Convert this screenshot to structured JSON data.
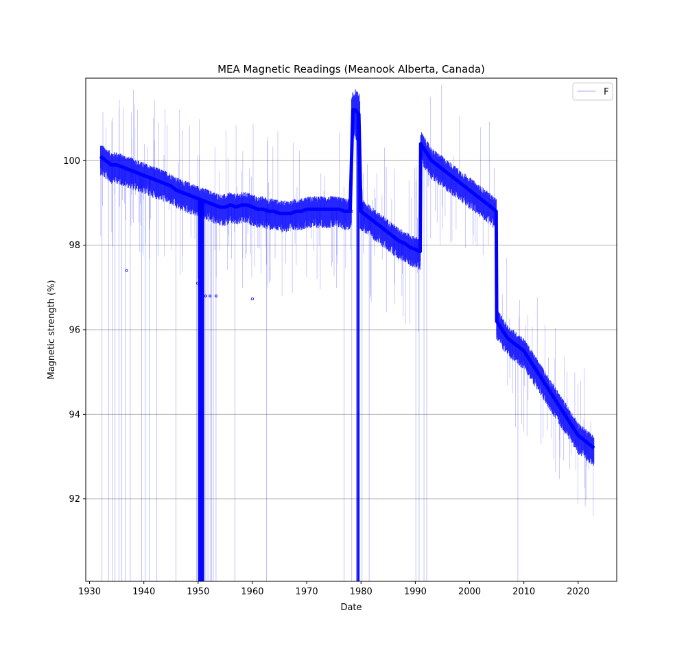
{
  "chart_data": {
    "type": "line",
    "title": "MEA Magnetic Readings (Meanook Alberta, Canada)",
    "xlabel": "Date",
    "ylabel": "Magnetic strength (%)",
    "xlim": [
      1929.3,
      2027.1
    ],
    "ylim": [
      90.05,
      101.95
    ],
    "xticks": [
      1930,
      1940,
      1950,
      1960,
      1970,
      1980,
      1990,
      2000,
      2010,
      2020
    ],
    "yticks": [
      92,
      94,
      96,
      98,
      100
    ],
    "grid": "horizontal",
    "legend_position": "top-right",
    "series": [
      {
        "name": "F",
        "color": "#0000ff",
        "x": [
          1932.0,
          1933.0,
          1934.0,
          1935.0,
          1936.0,
          1937.0,
          1938.0,
          1939.0,
          1940.0,
          1941.0,
          1942.0,
          1943.0,
          1944.0,
          1945.0,
          1946.0,
          1947.0,
          1948.0,
          1949.0,
          1950.0,
          1951.0,
          1952.0,
          1953.0,
          1954.0,
          1955.0,
          1956.0,
          1957.0,
          1958.0,
          1959.0,
          1960.0,
          1961.0,
          1962.0,
          1963.0,
          1964.0,
          1965.0,
          1966.0,
          1967.0,
          1968.0,
          1969.0,
          1970.0,
          1971.0,
          1972.0,
          1973.0,
          1974.0,
          1975.0,
          1976.0,
          1977.0,
          1978.0,
          1978.5,
          1979.0,
          1979.6,
          1980.0,
          1981.0,
          1982.0,
          1983.0,
          1984.0,
          1985.0,
          1986.0,
          1987.0,
          1988.0,
          1989.0,
          1990.0,
          1990.9,
          1991.0,
          1992.0,
          1993.0,
          1994.0,
          1995.0,
          1996.0,
          1997.0,
          1998.0,
          1999.0,
          2000.0,
          2001.0,
          2002.0,
          2003.0,
          2004.0,
          2004.9,
          2005.0,
          2006.0,
          2007.0,
          2008.0,
          2009.0,
          2010.0,
          2011.0,
          2012.0,
          2013.0,
          2014.0,
          2015.0,
          2016.0,
          2017.0,
          2018.0,
          2019.0,
          2020.0,
          2021.0,
          2022.0,
          2022.9
        ],
        "y": [
          100.1,
          100.0,
          99.9,
          99.9,
          99.85,
          99.8,
          99.75,
          99.7,
          99.65,
          99.6,
          99.55,
          99.5,
          99.45,
          99.4,
          99.3,
          99.25,
          99.2,
          99.15,
          99.1,
          99.05,
          99.0,
          98.95,
          98.9,
          98.9,
          98.95,
          98.9,
          98.95,
          98.95,
          98.9,
          98.85,
          98.85,
          98.8,
          98.8,
          98.75,
          98.75,
          98.75,
          98.8,
          98.8,
          98.85,
          98.85,
          98.85,
          98.85,
          98.85,
          98.85,
          98.85,
          98.8,
          98.8,
          101.2,
          101.2,
          101.1,
          98.8,
          98.7,
          98.6,
          98.5,
          98.4,
          98.3,
          98.2,
          98.1,
          98.05,
          97.95,
          97.9,
          97.85,
          100.4,
          100.2,
          100.0,
          99.9,
          99.8,
          99.7,
          99.6,
          99.5,
          99.4,
          99.3,
          99.2,
          99.1,
          99.0,
          98.9,
          98.8,
          96.2,
          96.0,
          95.8,
          95.7,
          95.6,
          95.5,
          95.3,
          95.1,
          94.9,
          94.7,
          94.5,
          94.3,
          94.1,
          93.9,
          93.7,
          93.5,
          93.4,
          93.3,
          93.2
        ]
      }
    ],
    "annotations": {
      "dropouts_x": [
        1932.3,
        1933.5,
        1934.2,
        1934.7,
        1935.4,
        1935.9,
        1936.6,
        1937.5,
        1939.6,
        1940.3,
        1941.0,
        1942.4,
        1945.9,
        1949.7,
        1950.1,
        1950.3,
        1950.5,
        1950.6,
        1950.8,
        1951.0,
        1951.4,
        1951.8,
        1952.2,
        1952.5,
        1952.8,
        1953.3,
        1956.8,
        1962.6,
        1976.9,
        1978.3,
        1979.3,
        1979.6,
        1980.2,
        1981.5,
        1990.1,
        1990.7,
        1991.6,
        1992.1,
        2008.9
      ],
      "outlier_points": [
        {
          "x": 1936.8,
          "y": 97.4
        },
        {
          "x": 1949.9,
          "y": 97.1
        },
        {
          "x": 1951.4,
          "y": 96.8
        },
        {
          "x": 1952.2,
          "y": 96.8
        },
        {
          "x": 1953.3,
          "y": 96.8
        },
        {
          "x": 1960.0,
          "y": 96.73
        },
        {
          "x": 1978.3,
          "y": 98.8
        }
      ]
    }
  }
}
